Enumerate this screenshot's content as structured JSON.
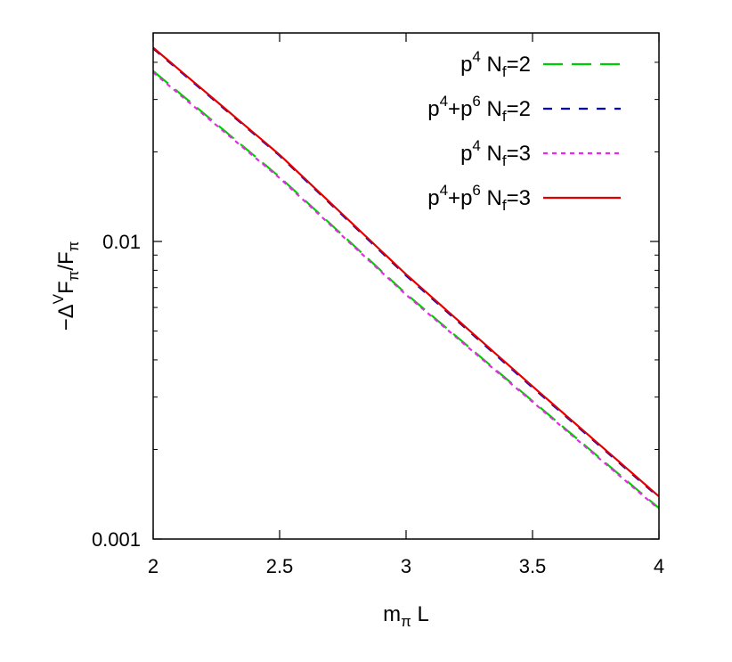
{
  "chart_data": {
    "type": "line",
    "title": "",
    "xlabel": "m_π L",
    "ylabel": "−Δ^V F_π/F_π",
    "xlim": [
      2,
      4
    ],
    "ylim": [
      0.001,
      0.045
    ],
    "yscale": "log",
    "xticks": [
      2,
      2.5,
      3,
      3.5,
      4
    ],
    "xtick_labels": [
      "2",
      "2.5",
      "3",
      "3.5",
      "4"
    ],
    "yticks": [
      0.001,
      0.01
    ],
    "ytick_labels": [
      "0.001",
      "0.01"
    ],
    "grid": false,
    "legend_position": "top-right",
    "series": [
      {
        "name": "p4 Nf=2",
        "label": {
          "base": "p",
          "sup": "4",
          "rest_base": "N",
          "rest_sub": "f",
          "rest_tail": "=2"
        },
        "color": "#00cc00",
        "dash": "long-dash",
        "x": [
          2.0,
          2.5,
          3.0,
          3.5,
          4.0
        ],
        "y": [
          0.0374,
          0.01647,
          0.00667,
          0.00291,
          0.00127
        ]
      },
      {
        "name": "p4+p6 Nf=2",
        "label": {
          "base": "p",
          "sup": "4",
          "mid": "+p",
          "sup2": "6",
          "rest_base": "N",
          "rest_sub": "f",
          "rest_tail": "=2"
        },
        "color": "#0000cc",
        "dash": "short-dash",
        "x": [
          2.0,
          2.5,
          3.0,
          3.5,
          4.0
        ],
        "y": [
          0.0445,
          0.01942,
          0.00768,
          0.00323,
          0.00138
        ]
      },
      {
        "name": "p4 Nf=3",
        "label": {
          "base": "p",
          "sup": "4",
          "rest_base": "N",
          "rest_sub": "f",
          "rest_tail": "=3"
        },
        "color": "#e22be2",
        "dash": "dotted",
        "x": [
          2.0,
          2.5,
          3.0,
          3.5,
          4.0
        ],
        "y": [
          0.037,
          0.01633,
          0.00662,
          0.00289,
          0.00126
        ]
      },
      {
        "name": "p4+p6 Nf=3",
        "label": {
          "base": "p",
          "sup": "4",
          "mid": "+p",
          "sup2": "6",
          "rest_base": "N",
          "rest_sub": "f",
          "rest_tail": "=3"
        },
        "color": "#e00000",
        "dash": "solid",
        "x": [
          2.0,
          2.5,
          3.0,
          3.5,
          4.0
        ],
        "y": [
          0.0448,
          0.01955,
          0.00775,
          0.00326,
          0.00139
        ]
      }
    ]
  }
}
